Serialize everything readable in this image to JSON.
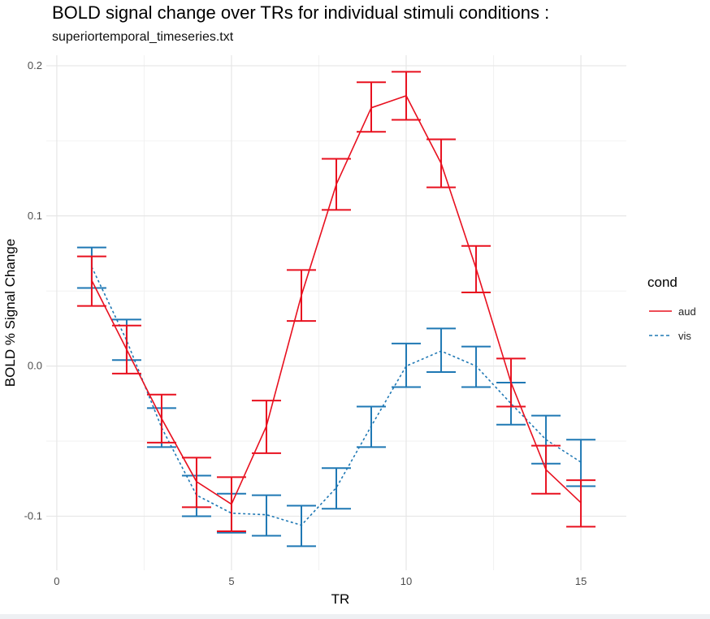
{
  "chart_data": {
    "type": "line",
    "title": "BOLD signal change over TRs for individual stimuli conditions :",
    "subtitle": "superiortemporal_timeseries.txt",
    "xlabel": "TR",
    "ylabel": "BOLD % Signal Change",
    "xlim": [
      -0.3,
      16.3
    ],
    "ylim": [
      -0.136,
      0.207
    ],
    "x_ticks": [
      0,
      5,
      10,
      15
    ],
    "x_tick_labels": [
      "0",
      "5",
      "10",
      "15"
    ],
    "y_ticks": [
      -0.1,
      0.0,
      0.1,
      0.2
    ],
    "y_tick_labels": [
      "-0.1",
      "0.0",
      "0.1",
      "0.2"
    ],
    "grid": true,
    "legend": {
      "title": "cond",
      "position": "right"
    },
    "series": [
      {
        "name": "aud",
        "color": "#e8101f",
        "line_style": "solid",
        "x": [
          1,
          2,
          3,
          4,
          5,
          6,
          7,
          8,
          9,
          10,
          11,
          12,
          13,
          14,
          15
        ],
        "y": [
          0.057,
          0.011,
          -0.035,
          -0.077,
          -0.092,
          -0.04,
          0.047,
          0.121,
          0.172,
          0.18,
          0.135,
          0.065,
          -0.011,
          -0.069,
          -0.091
        ],
        "err_low": [
          0.04,
          -0.005,
          -0.051,
          -0.094,
          -0.11,
          -0.058,
          0.03,
          0.104,
          0.156,
          0.164,
          0.119,
          0.049,
          -0.027,
          -0.085,
          -0.107
        ],
        "err_high": [
          0.073,
          0.027,
          -0.019,
          -0.061,
          -0.074,
          -0.023,
          0.064,
          0.138,
          0.189,
          0.196,
          0.151,
          0.08,
          0.005,
          -0.053,
          -0.076
        ]
      },
      {
        "name": "vis",
        "color": "#1f78b4",
        "line_style": "dashed",
        "x": [
          1,
          2,
          3,
          4,
          5,
          6,
          7,
          8,
          9,
          10,
          11,
          12,
          13,
          14,
          15
        ],
        "y": [
          0.066,
          0.017,
          -0.041,
          -0.086,
          -0.098,
          -0.099,
          -0.106,
          -0.081,
          -0.04,
          0.0,
          0.01,
          0.0,
          -0.025,
          -0.049,
          -0.064
        ],
        "err_low": [
          0.052,
          0.004,
          -0.054,
          -0.1,
          -0.111,
          -0.113,
          -0.12,
          -0.095,
          -0.054,
          -0.014,
          -0.004,
          -0.014,
          -0.039,
          -0.065,
          -0.08
        ],
        "err_high": [
          0.079,
          0.031,
          -0.028,
          -0.073,
          -0.085,
          -0.086,
          -0.093,
          -0.068,
          -0.027,
          0.015,
          0.025,
          0.013,
          -0.011,
          -0.033,
          -0.049
        ]
      }
    ]
  }
}
